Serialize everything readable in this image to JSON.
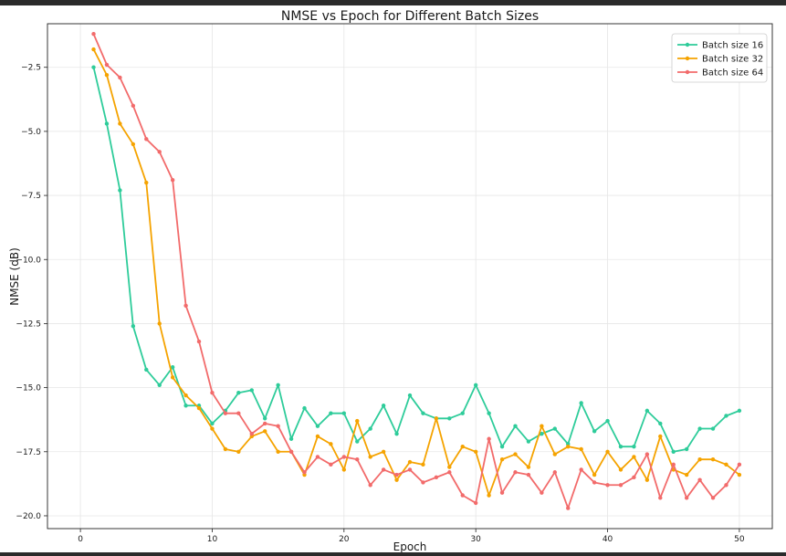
{
  "chart_data": {
    "type": "line",
    "title": "NMSE vs Epoch for Different Batch Sizes",
    "xlabel": "Epoch",
    "ylabel": "NMSE (dB)",
    "xlim": [
      -2.5,
      52.5
    ],
    "ylim": [
      -20.5,
      -0.8
    ],
    "xticks": [
      0,
      10,
      20,
      30,
      40,
      50
    ],
    "yticks": [
      -20.0,
      -17.5,
      -15.0,
      -12.5,
      -10.0,
      -7.5,
      -5.0,
      -2.5
    ],
    "xtick_labels": [
      "0",
      "10",
      "20",
      "30",
      "40",
      "50"
    ],
    "ytick_labels": [
      "−20.0",
      "−17.5",
      "−15.0",
      "−12.5",
      "−10.0",
      "−7.5",
      "−5.0",
      "−2.5"
    ],
    "grid": true,
    "legend_position": "top-right",
    "x": [
      1,
      2,
      3,
      4,
      5,
      6,
      7,
      8,
      9,
      10,
      11,
      12,
      13,
      14,
      15,
      16,
      17,
      18,
      19,
      20,
      21,
      22,
      23,
      24,
      25,
      26,
      27,
      28,
      29,
      30,
      31,
      32,
      33,
      34,
      35,
      36,
      37,
      38,
      39,
      40,
      41,
      42,
      43,
      44,
      45,
      46,
      47,
      48,
      49,
      50
    ],
    "series": [
      {
        "name": "Batch size 16",
        "color": "#2ecc9a",
        "values": [
          -2.5,
          -4.7,
          -7.3,
          -12.6,
          -14.3,
          -14.9,
          -14.2,
          -15.7,
          -15.7,
          -16.4,
          -15.9,
          -15.2,
          -15.1,
          -16.2,
          -14.9,
          -17.0,
          -15.8,
          -16.5,
          -16.0,
          -16.0,
          -17.1,
          -16.6,
          -15.7,
          -16.8,
          -15.3,
          -16.0,
          -16.2,
          -16.2,
          -16.0,
          -14.9,
          -16.0,
          -17.3,
          -16.5,
          -17.1,
          -16.8,
          -16.6,
          -17.2,
          -15.6,
          -16.7,
          -16.3,
          -17.3,
          -17.3,
          -15.9,
          -16.4,
          -17.5,
          -17.4,
          -16.6,
          -16.6,
          -16.1,
          -15.9
        ]
      },
      {
        "name": "Batch size 32",
        "color": "#f5a300",
        "values": [
          -1.8,
          -2.8,
          -4.7,
          -5.5,
          -7.0,
          -12.5,
          -14.6,
          -15.3,
          -15.8,
          -16.6,
          -17.4,
          -17.5,
          -16.9,
          -16.7,
          -17.5,
          -17.5,
          -18.4,
          -16.9,
          -17.2,
          -18.2,
          -16.3,
          -17.7,
          -17.5,
          -18.6,
          -17.9,
          -18.0,
          -16.2,
          -18.1,
          -17.3,
          -17.5,
          -19.2,
          -17.8,
          -17.6,
          -18.1,
          -16.5,
          -17.6,
          -17.3,
          -17.4,
          -18.4,
          -17.5,
          -18.2,
          -17.7,
          -18.6,
          -16.9,
          -18.2,
          -18.4,
          -17.8,
          -17.8,
          -18.0,
          -18.4
        ]
      },
      {
        "name": "Batch size 64",
        "color": "#f26b6b",
        "values": [
          -1.2,
          -2.4,
          -2.9,
          -4.0,
          -5.3,
          -5.8,
          -6.9,
          -11.8,
          -13.2,
          -15.2,
          -16.0,
          -16.0,
          -16.8,
          -16.4,
          -16.5,
          -17.5,
          -18.3,
          -17.7,
          -18.0,
          -17.7,
          -17.8,
          -18.8,
          -18.2,
          -18.4,
          -18.2,
          -18.7,
          -18.5,
          -18.3,
          -19.2,
          -19.5,
          -17.0,
          -19.1,
          -18.3,
          -18.4,
          -19.1,
          -18.3,
          -19.7,
          -18.2,
          -18.7,
          -18.8,
          -18.8,
          -18.5,
          -17.6,
          -19.3,
          -18.0,
          -19.3,
          -18.6,
          -19.3,
          -18.8,
          -18.0
        ]
      }
    ]
  }
}
